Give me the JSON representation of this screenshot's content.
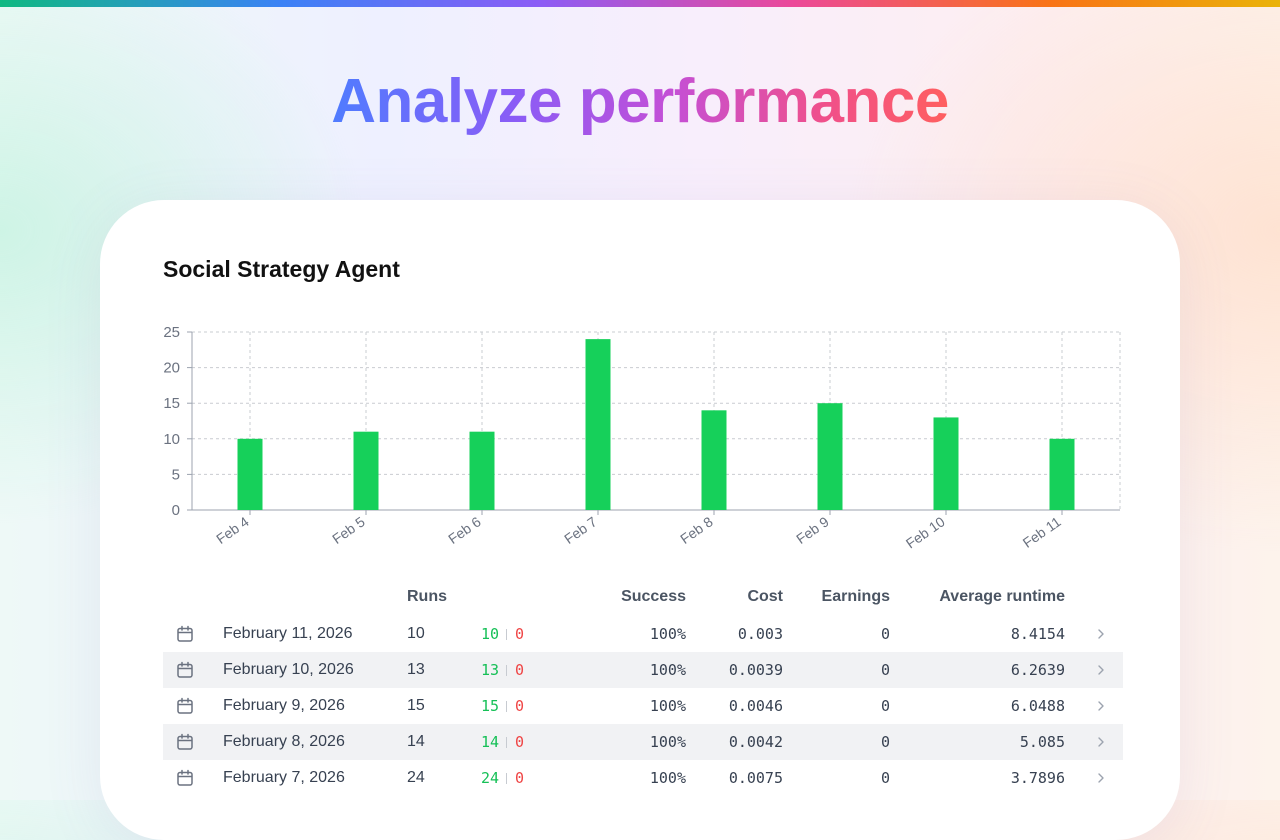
{
  "hero": {
    "title": "Analyze performance"
  },
  "card": {
    "title": "Social Strategy Agent"
  },
  "chart_data": {
    "type": "bar",
    "title": "",
    "xlabel": "",
    "ylabel": "",
    "categories": [
      "Feb 4",
      "Feb 5",
      "Feb 6",
      "Feb 7",
      "Feb 8",
      "Feb 9",
      "Feb 10",
      "Feb 11"
    ],
    "values": [
      10,
      11,
      11,
      24,
      14,
      15,
      13,
      10
    ],
    "ylim": [
      0,
      25
    ],
    "yticks": [
      0,
      5,
      10,
      15,
      20,
      25
    ],
    "grid": true,
    "bar_color": "#16d05a"
  },
  "table": {
    "headers": {
      "runs": "Runs",
      "success": "Success",
      "cost": "Cost",
      "earnings": "Earnings",
      "avg_runtime": "Average runtime"
    },
    "rows": [
      {
        "date": "February 11, 2026",
        "runs": "10",
        "succeeded": "10",
        "failed": "0",
        "success": "100%",
        "cost": "0.003",
        "earnings": "0",
        "avg_runtime": "8.4154"
      },
      {
        "date": "February 10, 2026",
        "runs": "13",
        "succeeded": "13",
        "failed": "0",
        "success": "100%",
        "cost": "0.0039",
        "earnings": "0",
        "avg_runtime": "6.2639"
      },
      {
        "date": "February 9, 2026",
        "runs": "15",
        "succeeded": "15",
        "failed": "0",
        "success": "100%",
        "cost": "0.0046",
        "earnings": "0",
        "avg_runtime": "6.0488"
      },
      {
        "date": "February 8, 2026",
        "runs": "14",
        "succeeded": "14",
        "failed": "0",
        "success": "100%",
        "cost": "0.0042",
        "earnings": "0",
        "avg_runtime": "5.085"
      },
      {
        "date": "February 7, 2026",
        "runs": "24",
        "succeeded": "24",
        "failed": "0",
        "success": "100%",
        "cost": "0.0075",
        "earnings": "0",
        "avg_runtime": "3.7896"
      }
    ]
  },
  "colors": {
    "success": "#16c057",
    "failure": "#ef4444",
    "bar": "#16d05a"
  },
  "icons": {
    "row_date": "calendar-icon",
    "row_open": "chevron-right-icon"
  }
}
